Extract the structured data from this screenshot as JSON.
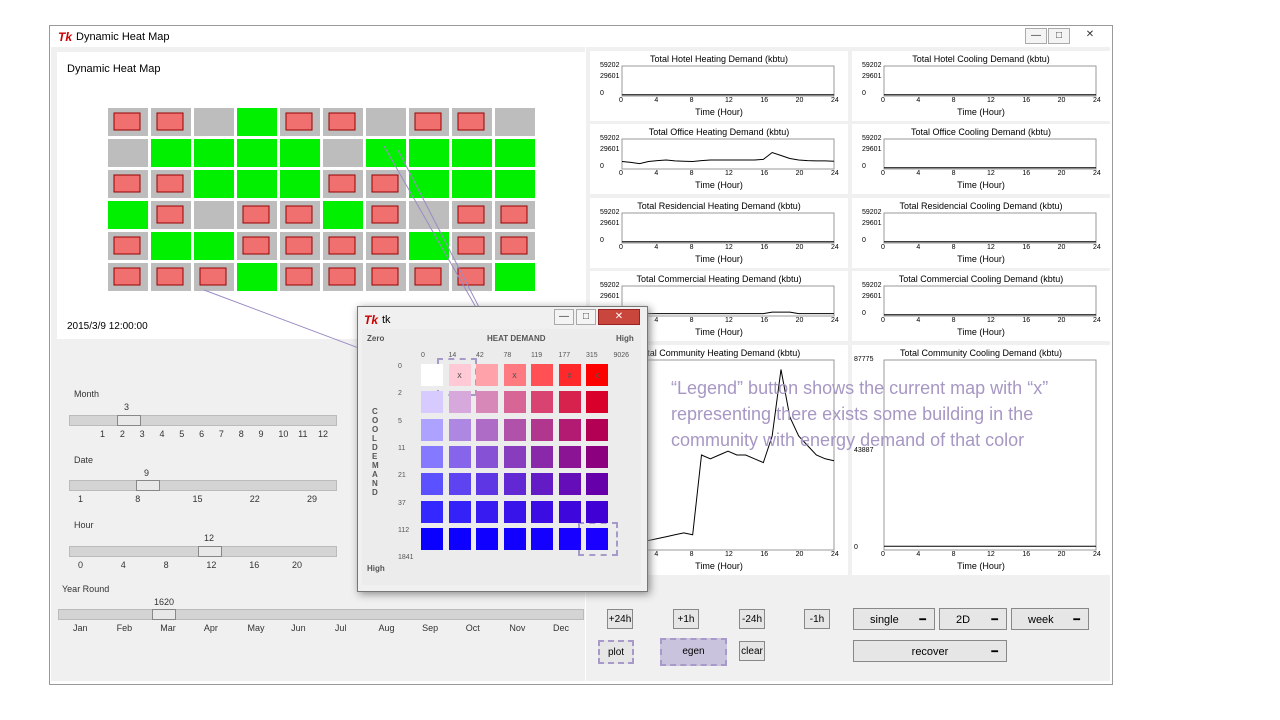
{
  "window": {
    "title": "Dynamic Heat Map",
    "minimize": "—",
    "maximize": "□",
    "close": "✕"
  },
  "map": {
    "title": "Dynamic Heat Map",
    "timestamp": "2015/3/9    12:00:00"
  },
  "sliders": {
    "month": {
      "label": "Month",
      "value": "3",
      "ticks": [
        "1",
        "2",
        "3",
        "4",
        "5",
        "6",
        "7",
        "8",
        "9",
        "10",
        "11",
        "12"
      ]
    },
    "date": {
      "label": "Date",
      "value": "9",
      "ticks": [
        "1",
        "8",
        "15",
        "22",
        "29"
      ]
    },
    "hour": {
      "label": "Hour",
      "value": "12",
      "ticks": [
        "0",
        "4",
        "8",
        "12",
        "16",
        "20"
      ]
    },
    "year": {
      "label": "Year Round",
      "value": "1620",
      "ticks": [
        "Jan",
        "Feb",
        "Mar",
        "Apr",
        "May",
        "Jun",
        "Jul",
        "Aug",
        "Sep",
        "Oct",
        "Nov",
        "Dec"
      ]
    }
  },
  "buttons": {
    "plus24h": "+24h",
    "plus1h": "+1h",
    "minus24h": "-24h",
    "minus1h": "-1h",
    "plot": "plot",
    "legend": "egen",
    "clear": "clear"
  },
  "dropdowns": {
    "mode": "single",
    "dim": "2D",
    "period": "week",
    "recover": "recover"
  },
  "charts": {
    "xlabel": "Time (Hour)",
    "xticks": [
      "0",
      "4",
      "8",
      "12",
      "16",
      "20",
      "24"
    ],
    "small_yticks": [
      "59202",
      "29601",
      "0"
    ],
    "big_yticks": [
      "87775",
      "43887",
      "0"
    ],
    "hotel_heat": "Total Hotel Heating Demand (kbtu)",
    "hotel_cool": "Total Hotel Cooling Demand (kbtu)",
    "office_heat": "Total Office Heating Demand (kbtu)",
    "office_cool": "Total Office Cooling Demand (kbtu)",
    "res_heat": "Total Residencial Heating Demand (kbtu)",
    "res_cool": "Total Residencial Cooling Demand (kbtu)",
    "com_heat": "Total Commercial Heating Demand (kbtu)",
    "com_cool": "Total Commercial Cooling Demand (kbtu)",
    "comm_heat": "Total Community Heating Demand (kbtu)",
    "comm_cool": "Total Community Cooling Demand (kbtu)"
  },
  "legend": {
    "title": "tk",
    "zero": "Zero",
    "high_top": "High",
    "heat_demand": "HEAT DEMAND",
    "high_bottom": "High",
    "cool_demand": "COOL DEMAND",
    "heat_ticks": [
      "0",
      "14",
      "42",
      "78",
      "119",
      "177",
      "315",
      "9026"
    ],
    "cool_ticks": [
      "0",
      "2",
      "5",
      "11",
      "21",
      "37",
      "112",
      "1841"
    ],
    "mark": "x"
  },
  "annotation": "“Legend” button shows the current map with “x” representing there exists some building in the community with energy demand of that color",
  "colors": {
    "green": "#00f000",
    "building": "#bdbdbd",
    "label": "#f07070",
    "annotation": "#a797c4"
  }
}
